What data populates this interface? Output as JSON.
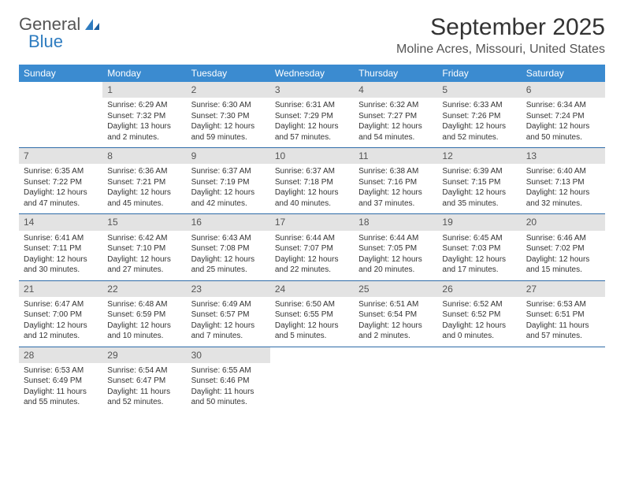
{
  "logo": {
    "text1": "General",
    "text2": "Blue"
  },
  "title": "September 2025",
  "location": "Moline Acres, Missouri, United States",
  "colors": {
    "header_bg": "#3b8bd0",
    "header_text": "#ffffff",
    "daynum_bg": "#e3e3e3",
    "daynum_text": "#555555",
    "border": "#2e6ba8",
    "body_text": "#333333",
    "logo_gray": "#555555",
    "logo_blue": "#2e7cc0",
    "page_bg": "#ffffff"
  },
  "day_labels": [
    "Sunday",
    "Monday",
    "Tuesday",
    "Wednesday",
    "Thursday",
    "Friday",
    "Saturday"
  ],
  "weeks": [
    [
      null,
      {
        "n": "1",
        "sunrise": "6:29 AM",
        "sunset": "7:32 PM",
        "daylight": "13 hours and 2 minutes."
      },
      {
        "n": "2",
        "sunrise": "6:30 AM",
        "sunset": "7:30 PM",
        "daylight": "12 hours and 59 minutes."
      },
      {
        "n": "3",
        "sunrise": "6:31 AM",
        "sunset": "7:29 PM",
        "daylight": "12 hours and 57 minutes."
      },
      {
        "n": "4",
        "sunrise": "6:32 AM",
        "sunset": "7:27 PM",
        "daylight": "12 hours and 54 minutes."
      },
      {
        "n": "5",
        "sunrise": "6:33 AM",
        "sunset": "7:26 PM",
        "daylight": "12 hours and 52 minutes."
      },
      {
        "n": "6",
        "sunrise": "6:34 AM",
        "sunset": "7:24 PM",
        "daylight": "12 hours and 50 minutes."
      }
    ],
    [
      {
        "n": "7",
        "sunrise": "6:35 AM",
        "sunset": "7:22 PM",
        "daylight": "12 hours and 47 minutes."
      },
      {
        "n": "8",
        "sunrise": "6:36 AM",
        "sunset": "7:21 PM",
        "daylight": "12 hours and 45 minutes."
      },
      {
        "n": "9",
        "sunrise": "6:37 AM",
        "sunset": "7:19 PM",
        "daylight": "12 hours and 42 minutes."
      },
      {
        "n": "10",
        "sunrise": "6:37 AM",
        "sunset": "7:18 PM",
        "daylight": "12 hours and 40 minutes."
      },
      {
        "n": "11",
        "sunrise": "6:38 AM",
        "sunset": "7:16 PM",
        "daylight": "12 hours and 37 minutes."
      },
      {
        "n": "12",
        "sunrise": "6:39 AM",
        "sunset": "7:15 PM",
        "daylight": "12 hours and 35 minutes."
      },
      {
        "n": "13",
        "sunrise": "6:40 AM",
        "sunset": "7:13 PM",
        "daylight": "12 hours and 32 minutes."
      }
    ],
    [
      {
        "n": "14",
        "sunrise": "6:41 AM",
        "sunset": "7:11 PM",
        "daylight": "12 hours and 30 minutes."
      },
      {
        "n": "15",
        "sunrise": "6:42 AM",
        "sunset": "7:10 PM",
        "daylight": "12 hours and 27 minutes."
      },
      {
        "n": "16",
        "sunrise": "6:43 AM",
        "sunset": "7:08 PM",
        "daylight": "12 hours and 25 minutes."
      },
      {
        "n": "17",
        "sunrise": "6:44 AM",
        "sunset": "7:07 PM",
        "daylight": "12 hours and 22 minutes."
      },
      {
        "n": "18",
        "sunrise": "6:44 AM",
        "sunset": "7:05 PM",
        "daylight": "12 hours and 20 minutes."
      },
      {
        "n": "19",
        "sunrise": "6:45 AM",
        "sunset": "7:03 PM",
        "daylight": "12 hours and 17 minutes."
      },
      {
        "n": "20",
        "sunrise": "6:46 AM",
        "sunset": "7:02 PM",
        "daylight": "12 hours and 15 minutes."
      }
    ],
    [
      {
        "n": "21",
        "sunrise": "6:47 AM",
        "sunset": "7:00 PM",
        "daylight": "12 hours and 12 minutes."
      },
      {
        "n": "22",
        "sunrise": "6:48 AM",
        "sunset": "6:59 PM",
        "daylight": "12 hours and 10 minutes."
      },
      {
        "n": "23",
        "sunrise": "6:49 AM",
        "sunset": "6:57 PM",
        "daylight": "12 hours and 7 minutes."
      },
      {
        "n": "24",
        "sunrise": "6:50 AM",
        "sunset": "6:55 PM",
        "daylight": "12 hours and 5 minutes."
      },
      {
        "n": "25",
        "sunrise": "6:51 AM",
        "sunset": "6:54 PM",
        "daylight": "12 hours and 2 minutes."
      },
      {
        "n": "26",
        "sunrise": "6:52 AM",
        "sunset": "6:52 PM",
        "daylight": "12 hours and 0 minutes."
      },
      {
        "n": "27",
        "sunrise": "6:53 AM",
        "sunset": "6:51 PM",
        "daylight": "11 hours and 57 minutes."
      }
    ],
    [
      {
        "n": "28",
        "sunrise": "6:53 AM",
        "sunset": "6:49 PM",
        "daylight": "11 hours and 55 minutes."
      },
      {
        "n": "29",
        "sunrise": "6:54 AM",
        "sunset": "6:47 PM",
        "daylight": "11 hours and 52 minutes."
      },
      {
        "n": "30",
        "sunrise": "6:55 AM",
        "sunset": "6:46 PM",
        "daylight": "11 hours and 50 minutes."
      },
      null,
      null,
      null,
      null
    ]
  ],
  "labels": {
    "sunrise": "Sunrise:",
    "sunset": "Sunset:",
    "daylight": "Daylight:"
  }
}
